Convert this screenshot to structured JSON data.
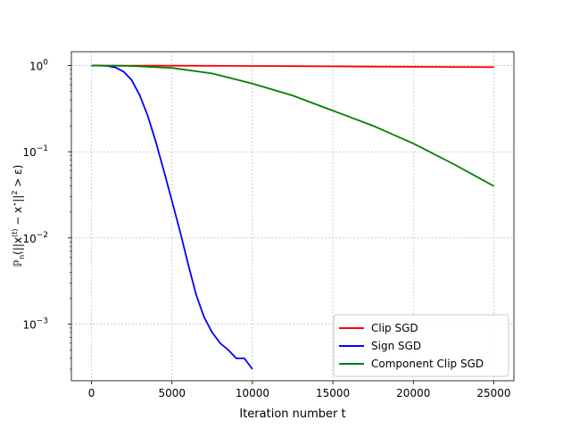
{
  "chart_data": {
    "type": "line",
    "title": "",
    "xlabel": "Iteration number t",
    "ylabel": "ℙn(||x(t) − x*||² > ε)",
    "ylabel_parts": {
      "a": "ℙ",
      "b": "n",
      "c": "(||x",
      "d": "(t)",
      "e": " − x",
      "f": "⋆",
      "g": "||",
      "h": "2",
      "i": " > ε)"
    },
    "xlim": [
      -1250,
      26250
    ],
    "ylim": [
      0.00022,
      1.45
    ],
    "yscale": "log",
    "grid": true,
    "legend_position": "lower-right",
    "x_ticks": [
      0,
      5000,
      10000,
      15000,
      20000,
      25000
    ],
    "x_tick_labels": [
      "0",
      "5000",
      "10000",
      "15000",
      "20000",
      "25000"
    ],
    "y_ticks": [
      0.001,
      0.01,
      0.1,
      1
    ],
    "y_tick_labels": [
      {
        "base": "10",
        "exp": "−3"
      },
      {
        "base": "10",
        "exp": "−2"
      },
      {
        "base": "10",
        "exp": "−1"
      },
      {
        "base": "10",
        "exp": "0"
      }
    ],
    "series": [
      {
        "name": "Clip SGD",
        "color": "#ff0000",
        "x": [
          0,
          2500,
          5000,
          7500,
          10000,
          12500,
          15000,
          17500,
          20000,
          22500,
          25000
        ],
        "y": [
          1.0,
          1.0,
          0.998,
          0.995,
          0.99,
          0.985,
          0.98,
          0.975,
          0.97,
          0.965,
          0.96
        ]
      },
      {
        "name": "Sign SGD",
        "color": "#0000ff",
        "x": [
          0,
          500,
          1000,
          1500,
          2000,
          2500,
          3000,
          3500,
          4000,
          4500,
          5000,
          5500,
          6000,
          6500,
          7000,
          7500,
          8000,
          8500,
          9000,
          9500,
          10000
        ],
        "y": [
          1.0,
          0.999,
          0.99,
          0.95,
          0.85,
          0.68,
          0.45,
          0.26,
          0.13,
          0.06,
          0.027,
          0.012,
          0.005,
          0.0022,
          0.0012,
          0.0008,
          0.0006,
          0.0005,
          0.0004,
          0.0004,
          0.0003
        ]
      },
      {
        "name": "Component Clip SGD",
        "color": "#008000",
        "x": [
          0,
          1000,
          2500,
          5000,
          7500,
          10000,
          12500,
          15000,
          17500,
          20000,
          22500,
          25000
        ],
        "y": [
          1.0,
          1.0,
          0.99,
          0.94,
          0.81,
          0.62,
          0.45,
          0.3,
          0.2,
          0.125,
          0.072,
          0.04
        ]
      }
    ]
  }
}
